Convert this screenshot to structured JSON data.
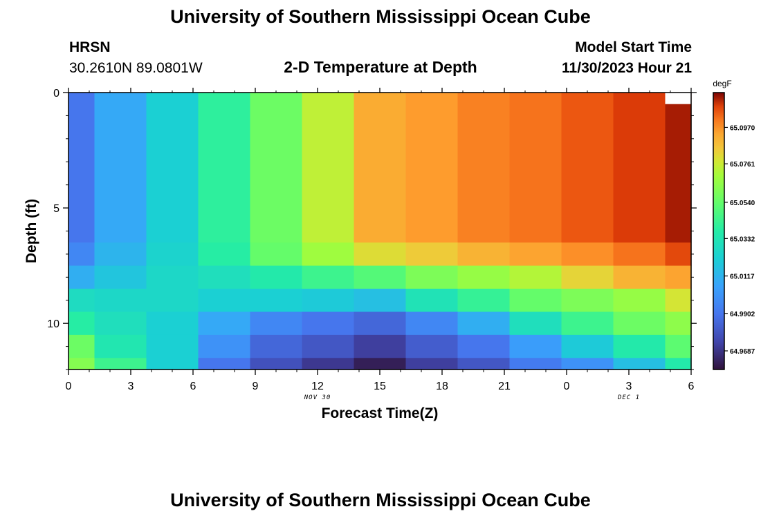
{
  "page": {
    "title": "University of Southern Mississippi Ocean Cube",
    "title_repeat": "University of Southern Mississippi Ocean Cube",
    "station": "HRSN",
    "coords": "30.2610N  89.0801W",
    "plot_title": "2-D Temperature at Depth",
    "model_start_label": "Model Start Time",
    "model_start_value": "11/30/2023 Hour 21"
  },
  "chart_data": {
    "type": "heatmap",
    "title": "2-D Temperature at Depth",
    "xlabel": "Forecast Time(Z)",
    "ylabel": "Depth (ft)",
    "x_tick_labels": [
      "0",
      "3",
      "6",
      "9",
      "12",
      "15",
      "18",
      "21",
      "0",
      "3",
      "6"
    ],
    "x_range_hours": [
      0,
      30
    ],
    "date_labels": [
      {
        "text": "NOV 30",
        "hour": 12
      },
      {
        "text": "DEC 1",
        "hour": 27
      }
    ],
    "y_tick_labels": [
      "0",
      "5",
      "10"
    ],
    "y_tick_values": [
      0,
      5,
      10
    ],
    "ylim": [
      0,
      12
    ],
    "colorbar_unit": "degF",
    "colorbar_range": [
      64.958,
      65.117
    ],
    "colorbar_labels": [
      "65.0970",
      "65.0761",
      "65.0540",
      "65.0332",
      "65.0117",
      "64.9902",
      "64.9687"
    ],
    "colorbar_values": [
      65.097,
      65.0761,
      65.054,
      65.0332,
      65.0117,
      64.9902,
      64.9687
    ],
    "x_edges": [
      0,
      1.25,
      3.75,
      6.25,
      8.75,
      11.25,
      13.75,
      16.25,
      18.75,
      21.25,
      23.75,
      26.25,
      28.75,
      30
    ],
    "y_edges": [
      0,
      6.5,
      7.5,
      8.5,
      9.5,
      10.5,
      11.5,
      12
    ],
    "values": [
      [
        64.99,
        65.008,
        65.022,
        65.04,
        65.056,
        65.074,
        65.092,
        65.096,
        65.1,
        65.102,
        65.106,
        65.11,
        65.114
      ],
      [
        64.996,
        65.012,
        65.024,
        65.038,
        65.054,
        65.068,
        65.08,
        65.084,
        65.09,
        65.094,
        65.098,
        65.102,
        65.108
      ],
      [
        65.01,
        65.018,
        65.026,
        65.03,
        65.036,
        65.044,
        65.05,
        65.06,
        65.066,
        65.072,
        65.082,
        65.09,
        65.094
      ],
      [
        65.028,
        65.026,
        65.026,
        65.022,
        65.022,
        65.02,
        65.016,
        65.032,
        65.042,
        65.054,
        65.06,
        65.066,
        65.078
      ],
      [
        65.038,
        65.03,
        65.022,
        65.008,
        64.996,
        64.99,
        64.985,
        64.996,
        65.01,
        65.03,
        65.044,
        65.056,
        65.064
      ],
      [
        65.056,
        65.034,
        65.022,
        65.0,
        64.985,
        64.98,
        64.972,
        64.982,
        64.99,
        65.004,
        65.02,
        65.036,
        65.052
      ],
      [
        65.062,
        65.044,
        65.022,
        64.99,
        64.978,
        64.97,
        64.962,
        64.972,
        64.98,
        64.992,
        65.0,
        65.016,
        65.036
      ]
    ],
    "missing_cells": [
      [
        0,
        12,
        0,
        0.5
      ]
    ]
  }
}
